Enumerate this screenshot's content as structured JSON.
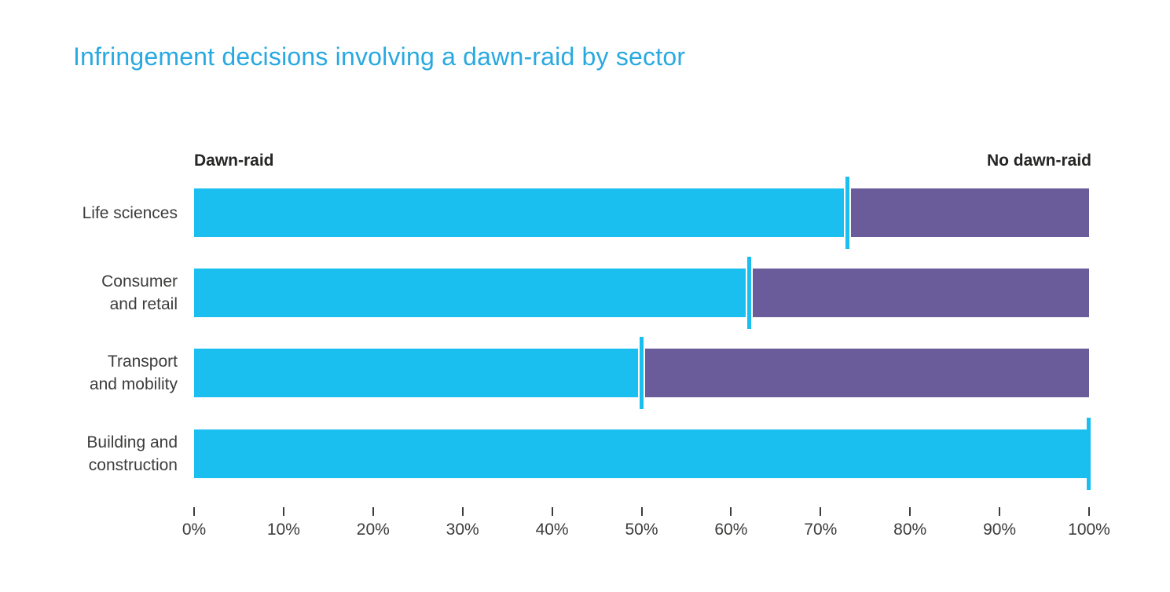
{
  "title": "Infringement decisions involving a dawn-raid by sector",
  "legend": {
    "left": "Dawn-raid",
    "right": "No dawn-raid"
  },
  "colors": {
    "dawn_raid": "#1abff0",
    "no_dawn_raid": "#6a5c9b",
    "title_text": "#29a9e1",
    "axis_text": "#3c3c3b",
    "legend_text": "#262625"
  },
  "chart_data": {
    "type": "bar",
    "orientation": "horizontal",
    "stacked": true,
    "title": "Infringement decisions involving a dawn-raid by sector",
    "categories": [
      "Life sciences",
      "Consumer and retail",
      "Transport and mobility",
      "Building and construction"
    ],
    "category_label_lines": [
      [
        "Life sciences"
      ],
      [
        "Consumer",
        "and retail"
      ],
      [
        "Transport",
        "and mobility"
      ],
      [
        "Building and",
        "construction"
      ]
    ],
    "series": [
      {
        "name": "Dawn-raid",
        "color": "#1abff0",
        "values": [
          73,
          62,
          50,
          100
        ]
      },
      {
        "name": "No dawn-raid",
        "color": "#6a5c9b",
        "values": [
          27,
          38,
          50,
          0
        ]
      }
    ],
    "xlabel": "",
    "ylabel": "",
    "xlim": [
      0,
      100
    ],
    "x_ticks": [
      "0%",
      "10%",
      "20%",
      "30%",
      "40%",
      "50%",
      "60%",
      "70%",
      "80%",
      "90%",
      "100%"
    ],
    "grid": false,
    "legend_position": "top, flanking bars left and right",
    "unit": "percent"
  }
}
